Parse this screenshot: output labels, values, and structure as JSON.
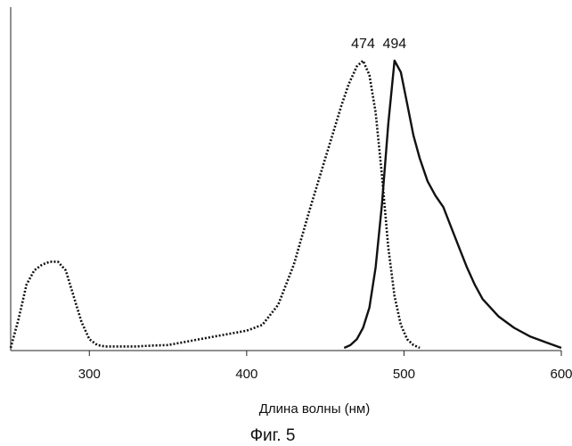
{
  "chart_data": {
    "type": "line",
    "title": "",
    "xlabel": "Длина волны (нм)",
    "ylabel": "",
    "xlim": [
      250,
      600
    ],
    "ylim": [
      0,
      1.0
    ],
    "xticks": [
      300,
      400,
      500,
      600
    ],
    "grid": false,
    "legend": "none",
    "annotations": [
      {
        "text": "474",
        "x": 474,
        "y": 1.0
      },
      {
        "text": "494",
        "x": 494,
        "y": 1.0
      }
    ],
    "series": [
      {
        "style": "dotted",
        "color": "#111111",
        "x": [
          250,
          255,
          260,
          265,
          270,
          275,
          280,
          285,
          290,
          295,
          300,
          305,
          310,
          320,
          330,
          340,
          350,
          360,
          370,
          380,
          390,
          400,
          410,
          420,
          425,
          430,
          440,
          450,
          455,
          460,
          465,
          470,
          474,
          478,
          482,
          486,
          490,
          494,
          498,
          502,
          506,
          510
        ],
        "y": [
          0.0,
          0.1,
          0.22,
          0.27,
          0.29,
          0.3,
          0.3,
          0.27,
          0.18,
          0.09,
          0.03,
          0.01,
          0.005,
          0.005,
          0.005,
          0.008,
          0.01,
          0.02,
          0.03,
          0.04,
          0.05,
          0.06,
          0.08,
          0.15,
          0.22,
          0.29,
          0.48,
          0.66,
          0.75,
          0.84,
          0.92,
          0.98,
          1.0,
          0.95,
          0.82,
          0.6,
          0.35,
          0.18,
          0.08,
          0.03,
          0.01,
          0.0
        ]
      },
      {
        "style": "solid",
        "color": "#111111",
        "x": [
          462,
          466,
          470,
          474,
          478,
          482,
          486,
          490,
          494,
          498,
          502,
          506,
          510,
          515,
          520,
          525,
          530,
          535,
          540,
          545,
          550,
          560,
          570,
          580,
          590,
          600
        ],
        "y": [
          0.0,
          0.01,
          0.03,
          0.07,
          0.14,
          0.28,
          0.5,
          0.78,
          1.0,
          0.96,
          0.85,
          0.74,
          0.66,
          0.58,
          0.53,
          0.49,
          0.42,
          0.35,
          0.28,
          0.22,
          0.17,
          0.11,
          0.07,
          0.04,
          0.02,
          0.0
        ]
      }
    ]
  },
  "figure": {
    "caption": "Фиг. 5"
  }
}
